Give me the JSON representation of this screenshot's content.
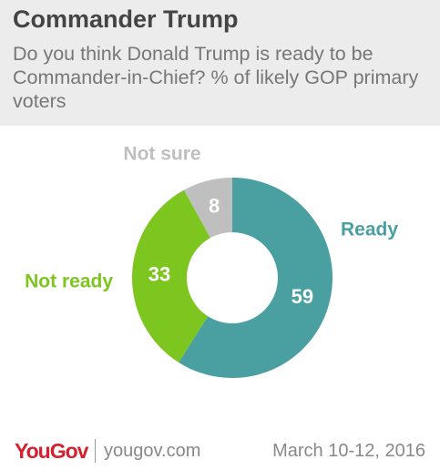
{
  "chart_data": {
    "type": "pie",
    "title": "Commander Trump",
    "subtitle": "Do you think Donald Trump is ready to be Commander-in-Chief? % of likely GOP primary voters",
    "categories": [
      "Ready",
      "Not ready",
      "Not sure"
    ],
    "values": [
      59,
      33,
      8
    ],
    "colors": [
      "#4a9fa0",
      "#7dc51f",
      "#bfbfbf"
    ],
    "donut": true
  },
  "footer": {
    "brand": "YouGov",
    "website": "yougov.com",
    "date": "March 10-12, 2016"
  }
}
